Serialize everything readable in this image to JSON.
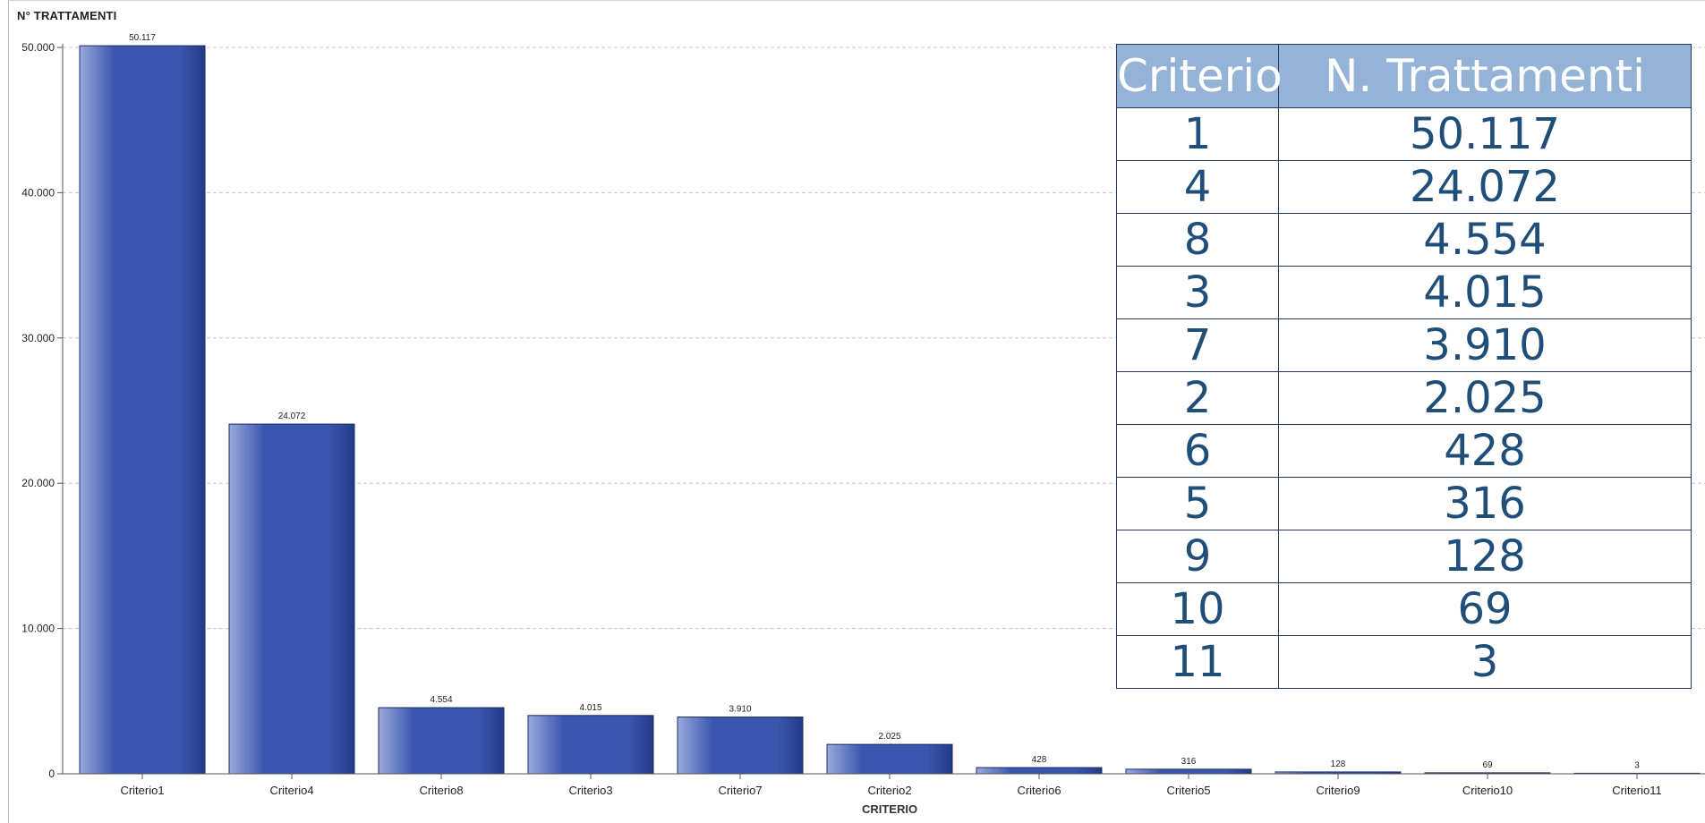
{
  "chart_data": {
    "type": "bar",
    "title": "N° TRATTAMENTI",
    "xlabel": "CRITERIO",
    "ylabel": "",
    "categories": [
      "Criterio1",
      "Criterio4",
      "Criterio8",
      "Criterio3",
      "Criterio7",
      "Criterio2",
      "Criterio6",
      "Criterio5",
      "Criterio9",
      "Criterio10",
      "Criterio11"
    ],
    "values": [
      50117,
      24072,
      4554,
      4015,
      3910,
      2025,
      428,
      316,
      128,
      69,
      3
    ],
    "value_labels": [
      "50.117",
      "24.072",
      "4.554",
      "4.015",
      "3.910",
      "2.025",
      "428",
      "316",
      "128",
      "69",
      "3"
    ],
    "ylim": [
      0,
      50000
    ],
    "yticks": [
      0,
      10000,
      20000,
      30000,
      40000,
      50000
    ],
    "ytick_labels": [
      "0",
      "10.000",
      "20.000",
      "30.000",
      "40.000",
      "50.000"
    ],
    "grid": true,
    "colors": {
      "bar": "#3a56ae",
      "bar_light": "#9aa9dc",
      "bar_dark": "#243a86"
    }
  },
  "table": {
    "headers": [
      "Criterio",
      "N. Trattamenti"
    ],
    "rows": [
      [
        "1",
        "50.117"
      ],
      [
        "4",
        "24.072"
      ],
      [
        "8",
        "4.554"
      ],
      [
        "3",
        "4.015"
      ],
      [
        "7",
        "3.910"
      ],
      [
        "2",
        "2.025"
      ],
      [
        "6",
        "428"
      ],
      [
        "5",
        "316"
      ],
      [
        "9",
        "128"
      ],
      [
        "10",
        "69"
      ],
      [
        "11",
        "3"
      ]
    ]
  }
}
